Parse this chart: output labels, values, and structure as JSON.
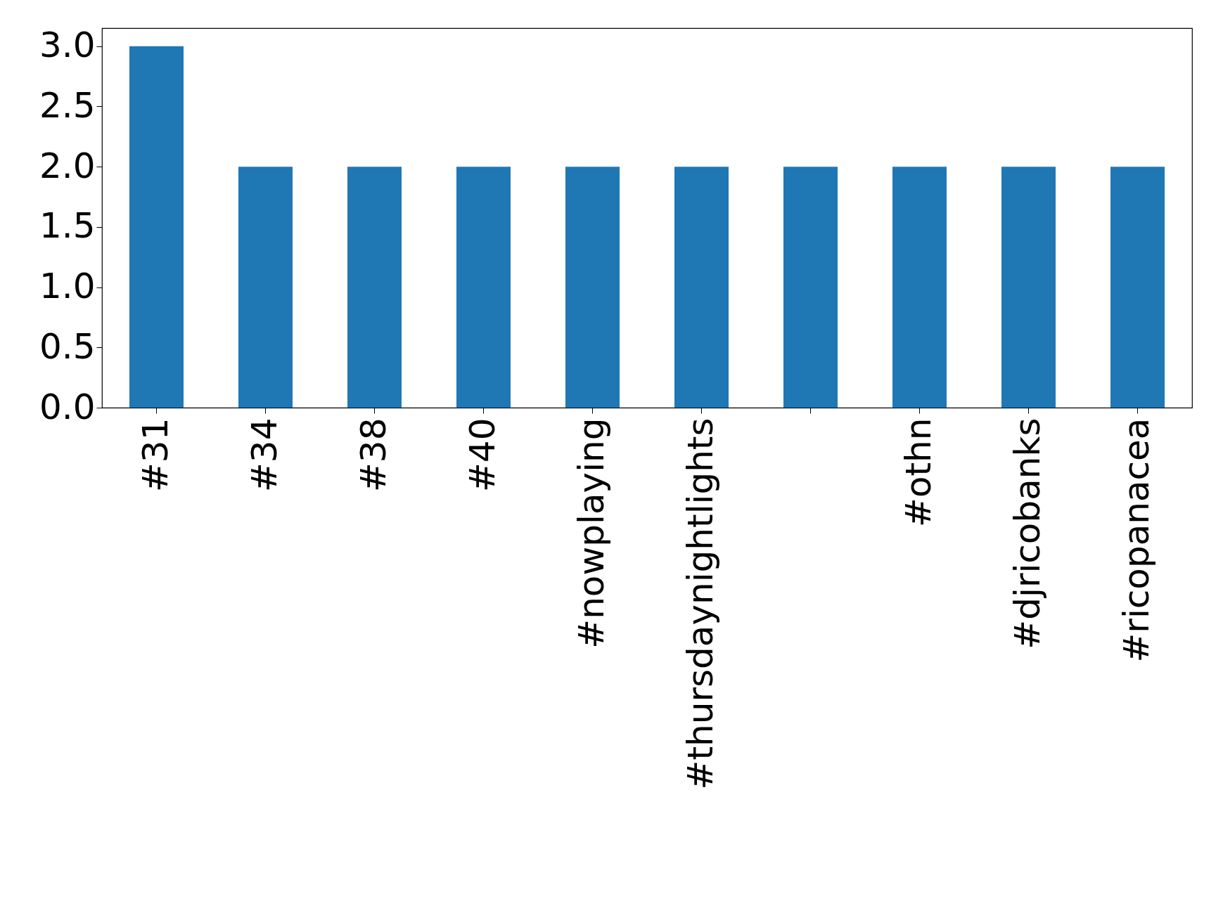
{
  "chart_data": {
    "type": "bar",
    "categories": [
      "#31",
      "#34",
      "#38",
      "#40",
      "#nowplaying",
      "#thursdaynightlights",
      null,
      "#othn",
      "#djricobanks",
      "#ricopanacea"
    ],
    "values": [
      3,
      2,
      2,
      2,
      2,
      2,
      2,
      2,
      2,
      2
    ],
    "color": "#1f77b4",
    "ylim": [
      0,
      3.15
    ],
    "yticks": [
      {
        "value": 0,
        "label": "0.0"
      },
      0.5,
      {
        "value": 1,
        "label": "1.0"
      },
      1.5,
      {
        "value": 2,
        "label": "2.0"
      },
      2.5,
      {
        "value": 3,
        "label": "3.0"
      }
    ],
    "grid": false
  }
}
